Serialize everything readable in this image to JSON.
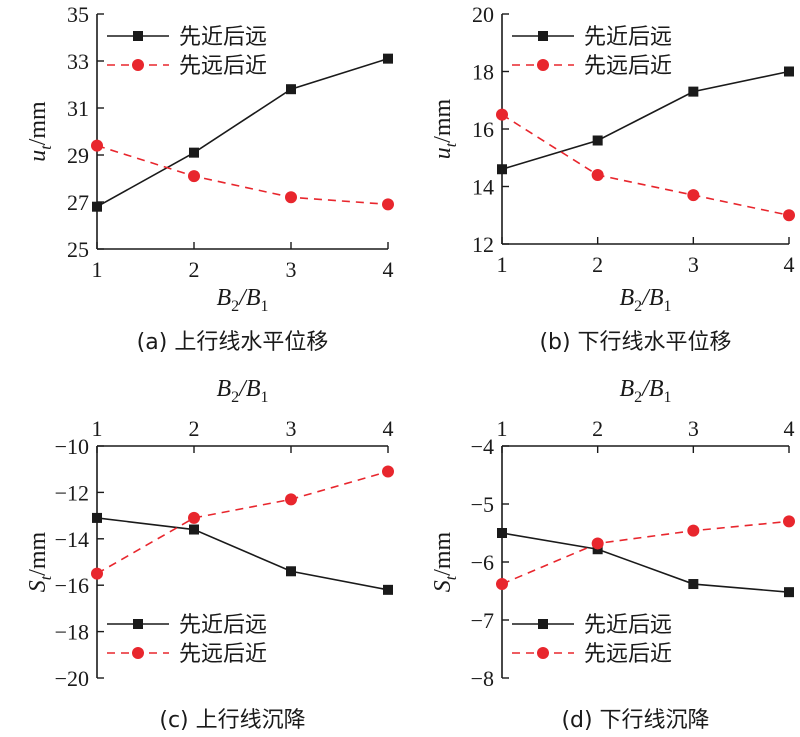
{
  "chart_data": [
    {
      "type": "line",
      "caption": "(a) 上行线水平位移",
      "xlabel": "B2/B1",
      "ylabel": "ut/mm",
      "x": [
        1,
        2,
        3,
        4
      ],
      "xlim": [
        1,
        4
      ],
      "ylim": [
        25,
        35
      ],
      "yticks": [
        25,
        27,
        29,
        31,
        33,
        35
      ],
      "xaxis_position": "bottom",
      "legend_position": "top-left",
      "series": [
        {
          "name": "先近后远",
          "values": [
            26.8,
            29.1,
            31.8,
            33.1
          ],
          "color": "#1a1a1a",
          "dash": "solid",
          "marker": "square"
        },
        {
          "name": "先远后近",
          "values": [
            29.4,
            28.1,
            27.2,
            26.9
          ],
          "color": "#e8262d",
          "dash": "dashed",
          "marker": "circle"
        }
      ]
    },
    {
      "type": "line",
      "caption": "(b) 下行线水平位移",
      "xlabel": "B2/B1",
      "ylabel": "ut/mm",
      "x": [
        1,
        2,
        3,
        4
      ],
      "xlim": [
        1,
        4
      ],
      "ylim": [
        12,
        20
      ],
      "yticks": [
        12,
        14,
        16,
        18,
        20
      ],
      "xaxis_position": "bottom",
      "legend_position": "top-left",
      "series": [
        {
          "name": "先近后远",
          "values": [
            14.6,
            15.6,
            17.3,
            18.0
          ],
          "color": "#1a1a1a",
          "dash": "solid",
          "marker": "square"
        },
        {
          "name": "先远后近",
          "values": [
            16.5,
            14.4,
            13.7,
            13.0
          ],
          "color": "#e8262d",
          "dash": "dashed",
          "marker": "circle"
        }
      ]
    },
    {
      "type": "line",
      "caption": "(c) 上行线沉降",
      "xlabel": "B2/B1",
      "ylabel": "St/mm",
      "x": [
        1,
        2,
        3,
        4
      ],
      "xlim": [
        1,
        4
      ],
      "ylim": [
        -20,
        -10
      ],
      "yticks": [
        -20,
        -18,
        -16,
        -14,
        -12,
        -10
      ],
      "xaxis_position": "top",
      "legend_position": "bottom-left",
      "series": [
        {
          "name": "先近后远",
          "values": [
            -13.1,
            -13.6,
            -15.4,
            -16.2
          ],
          "color": "#1a1a1a",
          "dash": "solid",
          "marker": "square"
        },
        {
          "name": "先远后近",
          "values": [
            -15.5,
            -13.1,
            -12.3,
            -11.1
          ],
          "color": "#e8262d",
          "dash": "dashed",
          "marker": "circle"
        }
      ]
    },
    {
      "type": "line",
      "caption": "(d) 下行线沉降",
      "xlabel": "B2/B1",
      "ylabel": "St/mm",
      "x": [
        1,
        2,
        3,
        4
      ],
      "xlim": [
        1,
        4
      ],
      "ylim": [
        -8,
        -4
      ],
      "yticks": [
        -8,
        -7,
        -6,
        -5,
        -4
      ],
      "xaxis_position": "top",
      "legend_position": "bottom-left",
      "series": [
        {
          "name": "先近后远",
          "values": [
            -5.5,
            -5.78,
            -6.38,
            -6.52
          ],
          "color": "#1a1a1a",
          "dash": "solid",
          "marker": "square"
        },
        {
          "name": "先远后近",
          "values": [
            -6.38,
            -5.68,
            -5.46,
            -5.3
          ],
          "color": "#e8262d",
          "dash": "dashed",
          "marker": "circle"
        }
      ]
    }
  ]
}
